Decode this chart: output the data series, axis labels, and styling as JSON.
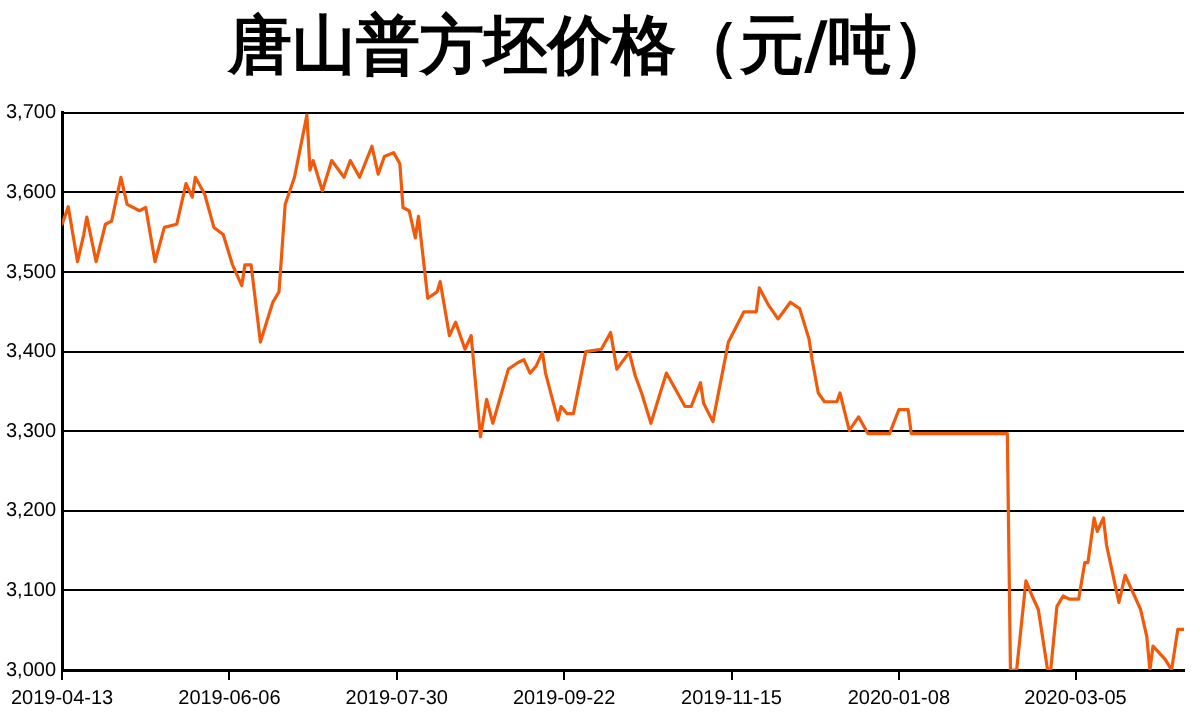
{
  "chart_data": {
    "type": "line",
    "title": "唐山普方坯价格（元/吨）",
    "x": [
      "2019-04-13",
      "2019-04-15",
      "2019-04-18",
      "2019-04-20",
      "2019-04-21",
      "2019-04-24",
      "2019-04-27",
      "2019-04-29",
      "2019-05-02",
      "2019-05-04",
      "2019-05-08",
      "2019-05-10",
      "2019-05-13",
      "2019-05-16",
      "2019-05-20",
      "2019-05-23",
      "2019-05-25",
      "2019-05-26",
      "2019-05-29",
      "2019-06-01",
      "2019-06-04",
      "2019-06-07",
      "2019-06-10",
      "2019-06-11",
      "2019-06-13",
      "2019-06-16",
      "2019-06-20",
      "2019-06-22",
      "2019-06-24",
      "2019-06-27",
      "2019-07-01",
      "2019-07-02",
      "2019-07-03",
      "2019-07-06",
      "2019-07-09",
      "2019-07-13",
      "2019-07-15",
      "2019-07-18",
      "2019-07-22",
      "2019-07-24",
      "2019-07-26",
      "2019-07-29",
      "2019-07-31",
      "2019-08-01",
      "2019-08-03",
      "2019-08-05",
      "2019-08-06",
      "2019-08-09",
      "2019-08-12",
      "2019-08-13",
      "2019-08-16",
      "2019-08-18",
      "2019-08-21",
      "2019-08-23",
      "2019-08-26",
      "2019-08-28",
      "2019-08-30",
      "2019-09-04",
      "2019-09-07",
      "2019-09-09",
      "2019-09-11",
      "2019-09-13",
      "2019-09-15",
      "2019-09-16",
      "2019-09-20",
      "2019-09-21",
      "2019-09-23",
      "2019-09-25",
      "2019-09-29",
      "2019-10-04",
      "2019-10-07",
      "2019-10-09",
      "2019-10-13",
      "2019-10-15",
      "2019-10-17",
      "2019-10-20",
      "2019-10-23",
      "2019-10-25",
      "2019-10-28",
      "2019-10-31",
      "2019-11-02",
      "2019-11-05",
      "2019-11-06",
      "2019-11-09",
      "2019-11-14",
      "2019-11-19",
      "2019-11-23",
      "2019-11-24",
      "2019-11-27",
      "2019-11-30",
      "2019-12-04",
      "2019-12-07",
      "2019-12-10",
      "2019-12-11",
      "2019-12-13",
      "2019-12-15",
      "2019-12-19",
      "2019-12-20",
      "2019-12-23",
      "2019-12-26",
      "2019-12-29",
      "2020-01-05",
      "2020-01-08",
      "2020-01-11",
      "2020-01-12",
      "2020-02-12",
      "2020-02-13",
      "2020-02-15",
      "2020-02-18",
      "2020-02-20",
      "2020-02-22",
      "2020-02-25",
      "2020-02-26",
      "2020-02-28",
      "2020-03-01",
      "2020-03-03",
      "2020-03-06",
      "2020-03-08",
      "2020-03-09",
      "2020-03-11",
      "2020-03-12",
      "2020-03-14",
      "2020-03-15",
      "2020-03-19",
      "2020-03-21",
      "2020-03-23",
      "2020-03-26",
      "2020-03-28",
      "2020-03-29",
      "2020-03-30",
      "2020-04-03",
      "2020-04-05",
      "2020-04-07",
      "2020-04-09"
    ],
    "series": [
      {
        "color": "#f05a0a",
        "values": [
          3560,
          3582,
          3513,
          3547,
          3569,
          3513,
          3560,
          3564,
          3619,
          3585,
          3577,
          3581,
          3513,
          3556,
          3560,
          3611,
          3594,
          3619,
          3598,
          3556,
          3547,
          3509,
          3483,
          3509,
          3509,
          3412,
          3462,
          3475,
          3585,
          3619,
          3697,
          3628,
          3640,
          3602,
          3640,
          3619,
          3640,
          3619,
          3658,
          3623,
          3645,
          3650,
          3636,
          3581,
          3577,
          3543,
          3570,
          3467,
          3475,
          3488,
          3420,
          3437,
          3403,
          3420,
          3293,
          3340,
          3310,
          3378,
          3386,
          3390,
          3373,
          3382,
          3399,
          3373,
          3314,
          3331,
          3322,
          3322,
          3400,
          3403,
          3424,
          3378,
          3399,
          3369,
          3348,
          3310,
          3348,
          3373,
          3352,
          3331,
          3331,
          3361,
          3335,
          3312,
          3412,
          3450,
          3450,
          3480,
          3458,
          3441,
          3462,
          3454,
          3416,
          3390,
          3348,
          3337,
          3337,
          3348,
          3301,
          3318,
          3297,
          3297,
          3327,
          3327,
          3297,
          3297,
          3000,
          3000,
          3112,
          3093,
          3076,
          3000,
          3000,
          3080,
          3093,
          3089,
          3089,
          3135,
          3135,
          3191,
          3174,
          3191,
          3157,
          3085,
          3119,
          3102,
          3076,
          3042,
          3000,
          3030,
          3013,
          3000,
          3051,
          3051
        ]
      }
    ],
    "xlim": [
      "2019-04-13",
      "2020-04-09"
    ],
    "xticks": [
      "2019-04-13",
      "2019-06-06",
      "2019-07-30",
      "2019-09-22",
      "2019-11-15",
      "2020-01-08",
      "2020-03-05"
    ],
    "ylim": [
      3000,
      3700
    ],
    "yticks": [
      {
        "value": 3000,
        "label": "3,000"
      },
      {
        "value": 3100,
        "label": "3,100"
      },
      {
        "value": 3200,
        "label": "3,200"
      },
      {
        "value": 3300,
        "label": "3,300"
      },
      {
        "value": 3400,
        "label": "3,400"
      },
      {
        "value": 3500,
        "label": "3,500"
      },
      {
        "value": 3600,
        "label": "3,600"
      },
      {
        "value": 3700,
        "label": "3,700"
      }
    ],
    "grid": "y",
    "legend": false,
    "marker": "none",
    "line_style": "solid"
  }
}
